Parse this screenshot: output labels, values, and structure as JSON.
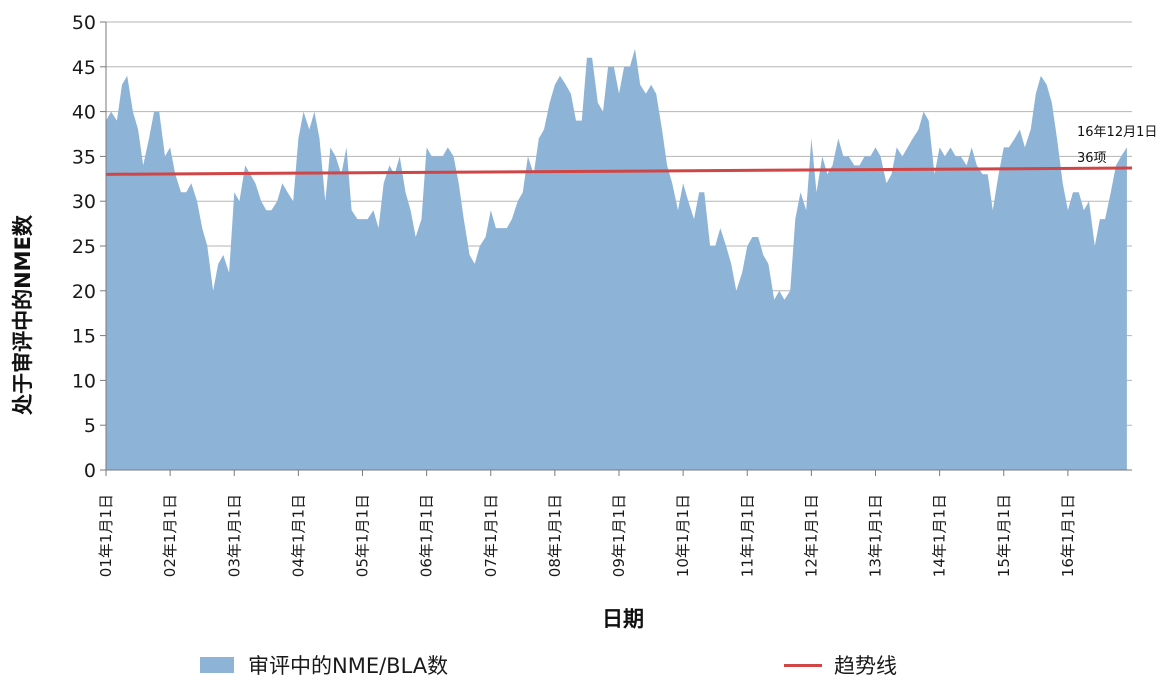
{
  "chart_data": {
    "type": "area",
    "xlabel": "日期",
    "ylabel": "处于审评中的NME数",
    "ylim": [
      0,
      50
    ],
    "yticks": [
      "0",
      "5",
      "10",
      "15",
      "20",
      "25",
      "30",
      "35",
      "40",
      "45",
      "50"
    ],
    "xticks": [
      "01年1月1日",
      "02年1月1日",
      "03年1月1日",
      "04年1月1日",
      "05年1月1日",
      "06年1月1日",
      "07年1月1日",
      "08年1月1日",
      "09年1月1日",
      "10年1月1日",
      "11年1月1日",
      "12年1月1日",
      "13年1月1日",
      "14年1月1日",
      "15年1月1日",
      "16年1月1日"
    ],
    "grid": "horizontal",
    "legend_position": "bottom",
    "colors": {
      "area": "#8db3d6",
      "trend": "#d04545"
    },
    "series": [
      {
        "name": "审评中的NME/BLA数",
        "type": "area",
        "x": [
          2001.0,
          2001.08,
          2001.17,
          2001.25,
          2001.33,
          2001.42,
          2001.5,
          2001.58,
          2001.67,
          2001.75,
          2001.83,
          2001.92,
          2002.0,
          2002.08,
          2002.17,
          2002.25,
          2002.33,
          2002.42,
          2002.5,
          2002.58,
          2002.67,
          2002.75,
          2002.83,
          2002.92,
          2003.0,
          2003.08,
          2003.17,
          2003.25,
          2003.33,
          2003.42,
          2003.5,
          2003.58,
          2003.67,
          2003.75,
          2003.83,
          2003.92,
          2004.0,
          2004.08,
          2004.17,
          2004.25,
          2004.33,
          2004.42,
          2004.5,
          2004.58,
          2004.67,
          2004.75,
          2004.83,
          2004.92,
          2005.0,
          2005.08,
          2005.17,
          2005.25,
          2005.33,
          2005.42,
          2005.5,
          2005.58,
          2005.67,
          2005.75,
          2005.83,
          2005.92,
          2006.0,
          2006.08,
          2006.17,
          2006.25,
          2006.33,
          2006.42,
          2006.5,
          2006.58,
          2006.67,
          2006.75,
          2006.83,
          2006.92,
          2007.0,
          2007.08,
          2007.17,
          2007.25,
          2007.33,
          2007.42,
          2007.5,
          2007.58,
          2007.67,
          2007.75,
          2007.83,
          2007.92,
          2008.0,
          2008.08,
          2008.17,
          2008.25,
          2008.33,
          2008.42,
          2008.5,
          2008.58,
          2008.67,
          2008.75,
          2008.83,
          2008.92,
          2009.0,
          2009.08,
          2009.17,
          2009.25,
          2009.33,
          2009.42,
          2009.5,
          2009.58,
          2009.67,
          2009.75,
          2009.83,
          2009.92,
          2010.0,
          2010.08,
          2010.17,
          2010.25,
          2010.33,
          2010.42,
          2010.5,
          2010.58,
          2010.67,
          2010.75,
          2010.83,
          2010.92,
          2011.0,
          2011.08,
          2011.17,
          2011.25,
          2011.33,
          2011.42,
          2011.5,
          2011.58,
          2011.67,
          2011.75,
          2011.83,
          2011.92,
          2012.0,
          2012.08,
          2012.17,
          2012.25,
          2012.33,
          2012.42,
          2012.5,
          2012.58,
          2012.67,
          2012.75,
          2012.83,
          2012.92,
          2013.0,
          2013.08,
          2013.17,
          2013.25,
          2013.33,
          2013.42,
          2013.5,
          2013.58,
          2013.67,
          2013.75,
          2013.83,
          2013.92,
          2014.0,
          2014.08,
          2014.17,
          2014.25,
          2014.33,
          2014.42,
          2014.5,
          2014.58,
          2014.67,
          2014.75,
          2014.83,
          2014.92,
          2015.0,
          2015.08,
          2015.17,
          2015.25,
          2015.33,
          2015.42,
          2015.5,
          2015.58,
          2015.67,
          2015.75,
          2015.83,
          2015.92,
          2016.0,
          2016.08,
          2016.17,
          2016.25,
          2016.33,
          2016.42,
          2016.5,
          2016.58,
          2016.67,
          2016.75,
          2016.83,
          2016.92
        ],
        "values": [
          39,
          40,
          39,
          43,
          44,
          40,
          38,
          34,
          37,
          40,
          40,
          35,
          36,
          33,
          31,
          31,
          32,
          30,
          27,
          25,
          20,
          23,
          24,
          22,
          31,
          30,
          34,
          33,
          32,
          30,
          29,
          29,
          30,
          32,
          31,
          30,
          37,
          40,
          38,
          40,
          37,
          30,
          36,
          35,
          33,
          36,
          29,
          28,
          28,
          28,
          29,
          27,
          32,
          34,
          33,
          35,
          31,
          29,
          26,
          28,
          36,
          35,
          35,
          35,
          36,
          35,
          32,
          28,
          24,
          23,
          25,
          26,
          29,
          27,
          27,
          27,
          28,
          30,
          31,
          35,
          33,
          37,
          38,
          41,
          43,
          44,
          43,
          42,
          39,
          39,
          46,
          46,
          41,
          40,
          45,
          45,
          42,
          45,
          45,
          47,
          43,
          42,
          43,
          42,
          38,
          34,
          32,
          29,
          32,
          30,
          28,
          31,
          31,
          25,
          25,
          27,
          25,
          23,
          20,
          22,
          25,
          26,
          26,
          24,
          23,
          19,
          20,
          19,
          20,
          28,
          31,
          29,
          37,
          31,
          35,
          33,
          34,
          37,
          35,
          35,
          34,
          34,
          35,
          35,
          36,
          35,
          32,
          33,
          36,
          35,
          36,
          37,
          38,
          40,
          39,
          33,
          36,
          35,
          36,
          35,
          35,
          34,
          36,
          34,
          33,
          33,
          29,
          33,
          36,
          36,
          37,
          38,
          36,
          38,
          42,
          44,
          43,
          41,
          37,
          32,
          29,
          31,
          31,
          29,
          30,
          25,
          28,
          28,
          31,
          34,
          35,
          36
        ]
      },
      {
        "name": "趋势线",
        "type": "line",
        "x": [
          2001.0,
          2017.0
        ],
        "values": [
          33.0,
          33.7
        ]
      }
    ],
    "annotations": [
      "16年12月1日",
      "36项"
    ]
  }
}
